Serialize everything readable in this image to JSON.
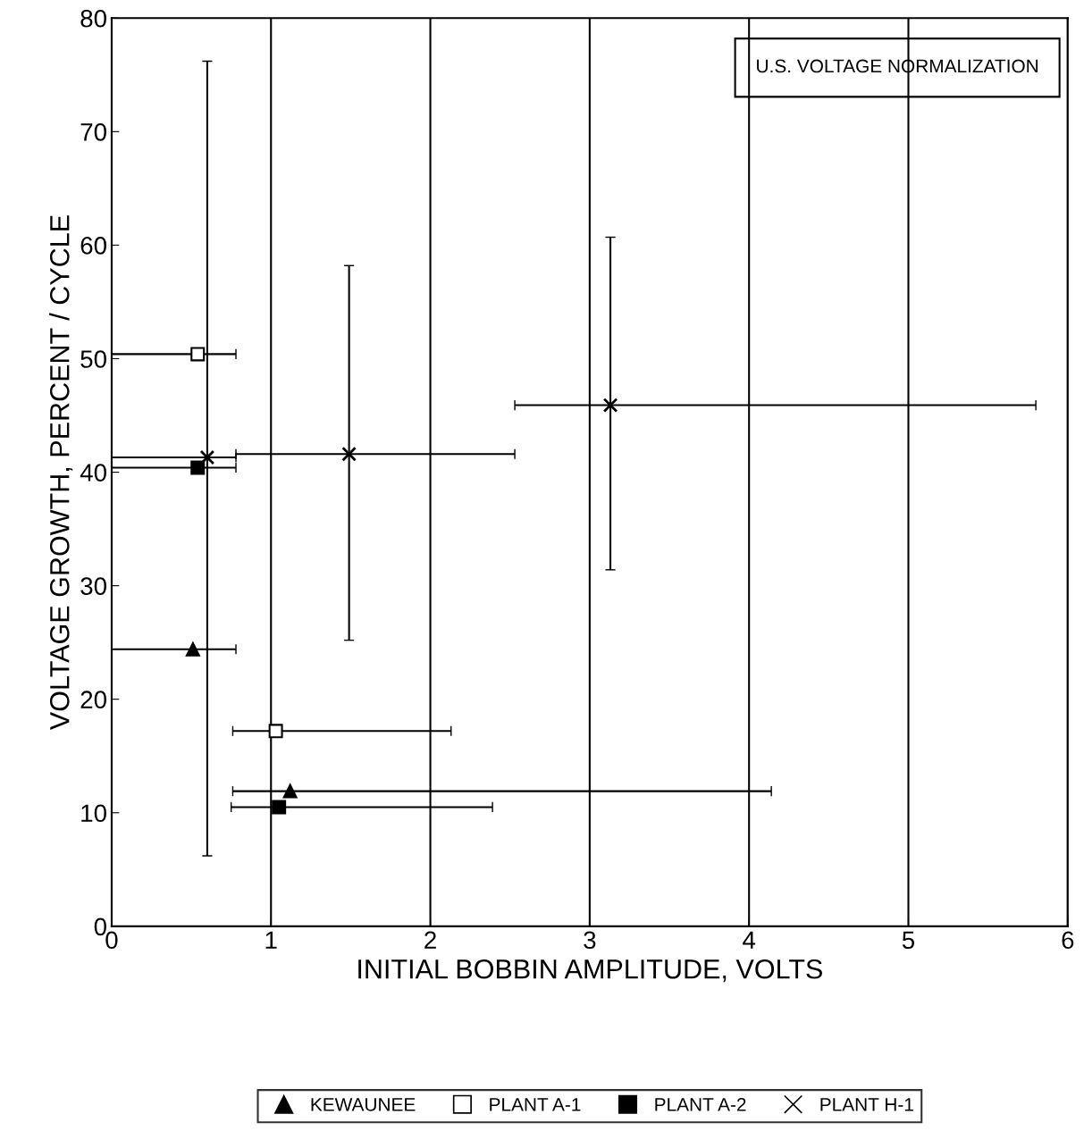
{
  "chart_data": {
    "type": "scatter",
    "xlabel": "INITIAL BOBBIN AMPLITUDE, VOLTS",
    "ylabel": "VOLTAGE GROWTH, PERCENT / CYCLE",
    "annotations": [
      "U.S. VOLTAGE NORMALIZATION"
    ],
    "xlim": [
      0,
      6
    ],
    "xticks": [
      0,
      1,
      2,
      3,
      4,
      5,
      6
    ],
    "ylim": [
      0,
      80
    ],
    "yticks": [
      0,
      10,
      20,
      30,
      40,
      50,
      60,
      70,
      80
    ],
    "grid": "x",
    "legend": "bottom",
    "series": [
      {
        "name": "KEWAUNEE",
        "color": "#000000",
        "marker": "triangle",
        "x": [
          0.51,
          1.12
        ],
        "values": [
          24.4,
          11.9
        ],
        "xerrors": [
          [
            0,
            0.78
          ],
          [
            0.76,
            4.14
          ]
        ]
      },
      {
        "name": "PLANT A-1",
        "color": "#ffffff",
        "marker": "square",
        "x": [
          0.54,
          1.03
        ],
        "values": [
          50.4,
          17.2
        ],
        "xerrors": [
          [
            0,
            0.78
          ],
          [
            0.76,
            2.13
          ]
        ]
      },
      {
        "name": "PLANT A-2",
        "color": "#000000",
        "marker": "square",
        "x": [
          0.54,
          1.05
        ],
        "values": [
          40.4,
          10.5
        ],
        "xerrors": [
          [
            0,
            0.78
          ],
          [
            0.75,
            2.39
          ]
        ]
      },
      {
        "name": "PLANT H-1",
        "color": "#000000",
        "marker": "cross",
        "x": [
          0.6,
          1.49,
          3.13
        ],
        "values": [
          41.3,
          41.6,
          45.9
        ],
        "xerrors": [
          [
            0,
            0.78
          ],
          [
            0.78,
            2.53
          ],
          [
            2.53,
            5.8
          ]
        ],
        "errors": [
          [
            6.2,
            76.2
          ],
          [
            25.2,
            58.2
          ],
          [
            31.4,
            60.7
          ]
        ]
      }
    ]
  }
}
